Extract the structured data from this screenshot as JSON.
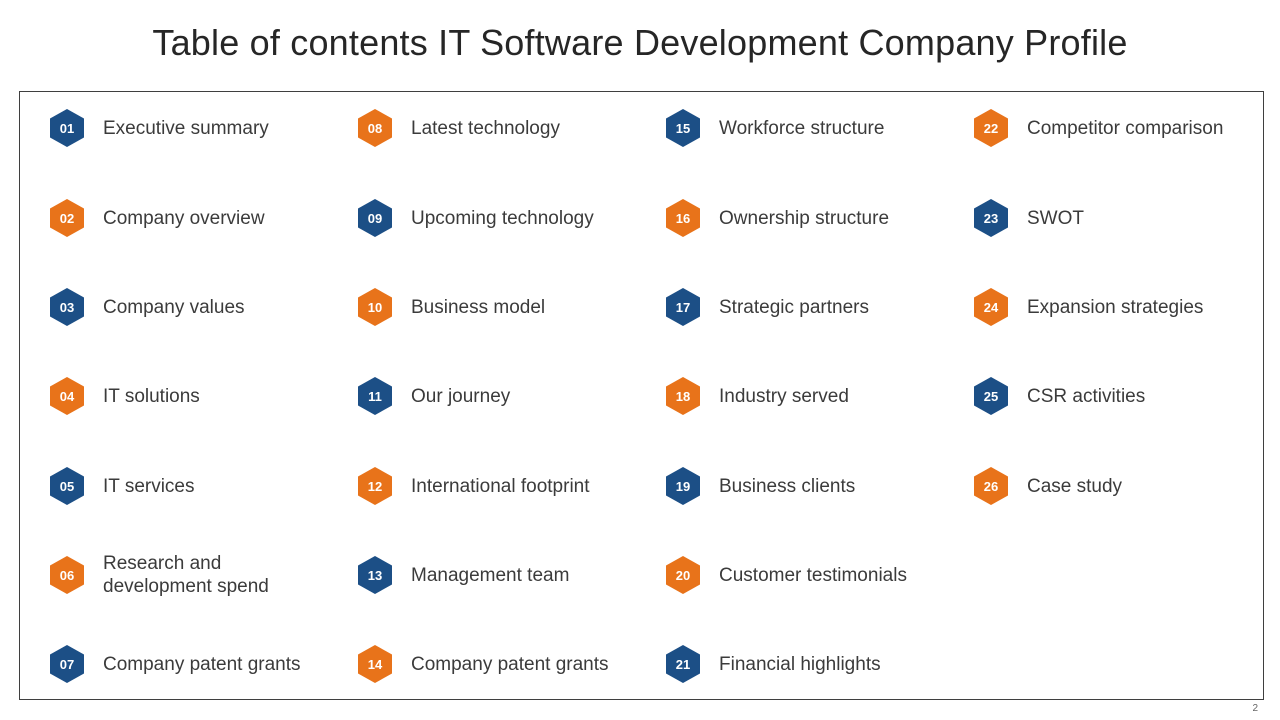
{
  "title": "Table of contents IT Software Development Company Profile",
  "page_number": "2",
  "colors": {
    "blue": "#1c4f86",
    "orange": "#e8731a"
  },
  "items": [
    {
      "num": "01",
      "label": "Executive summary",
      "color": "blue"
    },
    {
      "num": "02",
      "label": "Company overview",
      "color": "orange"
    },
    {
      "num": "03",
      "label": "Company values",
      "color": "blue"
    },
    {
      "num": "04",
      "label": "IT solutions",
      "color": "orange"
    },
    {
      "num": "05",
      "label": "IT services",
      "color": "blue"
    },
    {
      "num": "06",
      "label": "Research and development spend",
      "color": "orange"
    },
    {
      "num": "07",
      "label": "Company patent grants",
      "color": "blue"
    },
    {
      "num": "08",
      "label": "Latest technology",
      "color": "orange"
    },
    {
      "num": "09",
      "label": "Upcoming technology",
      "color": "blue"
    },
    {
      "num": "10",
      "label": "Business model",
      "color": "orange"
    },
    {
      "num": "11",
      "label": "Our journey",
      "color": "blue"
    },
    {
      "num": "12",
      "label": "International footprint",
      "color": "orange"
    },
    {
      "num": "13",
      "label": "Management team",
      "color": "blue"
    },
    {
      "num": "14",
      "label": "Company patent grants",
      "color": "orange"
    },
    {
      "num": "15",
      "label": "Workforce structure",
      "color": "blue"
    },
    {
      "num": "16",
      "label": "Ownership structure",
      "color": "orange"
    },
    {
      "num": "17",
      "label": "Strategic partners",
      "color": "blue"
    },
    {
      "num": "18",
      "label": "Industry served",
      "color": "orange"
    },
    {
      "num": "19",
      "label": "Business clients",
      "color": "blue"
    },
    {
      "num": "20",
      "label": "Customer testimonials",
      "color": "orange"
    },
    {
      "num": "21",
      "label": "Financial highlights",
      "color": "blue"
    },
    {
      "num": "22",
      "label": "Competitor comparison",
      "color": "orange"
    },
    {
      "num": "23",
      "label": "SWOT",
      "color": "blue"
    },
    {
      "num": "24",
      "label": "Expansion strategies",
      "color": "orange"
    },
    {
      "num": "25",
      "label": "CSR activities",
      "color": "blue"
    },
    {
      "num": "26",
      "label": "Case study",
      "color": "orange"
    }
  ]
}
